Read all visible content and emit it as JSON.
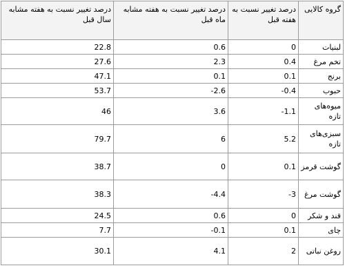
{
  "table": {
    "headers": {
      "year": "درصد تغییر نسبت به هفته مشابه سال قبل",
      "month": "درصد تغییر نسبت به هفته مشابه ماه قبل",
      "week": "درصد تغییر نسبت به هفته قبل",
      "group": "گروه کالایی"
    },
    "rows": [
      {
        "group": "لبنیات",
        "week": "0",
        "month": "0.6",
        "year": "22.8"
      },
      {
        "group": "تخم مرغ",
        "week": "0.4",
        "month": "2.3",
        "year": "27.6"
      },
      {
        "group": "برنج",
        "week": "0.1",
        "month": "0.1",
        "year": "47.1"
      },
      {
        "group": "حبوب",
        "week": "-0.4",
        "month": "-2.6",
        "year": "53.7"
      },
      {
        "group": "میوه‌های تازه",
        "week": "-1.1",
        "month": "3.6",
        "year": "46"
      },
      {
        "group": "سبزی‌های تازه",
        "week": "5.2",
        "month": "6",
        "year": "79.7"
      },
      {
        "group": "گوشت قرمز",
        "week": "0.1",
        "month": "0",
        "year": "38.7"
      },
      {
        "group": "گوشت مرغ",
        "week": "-3",
        "month": "-4.4",
        "year": "38.3"
      },
      {
        "group": "قند و شکر",
        "week": "0",
        "month": "0.6",
        "year": "24.5"
      },
      {
        "group": "چای",
        "week": "0.1",
        "month": "-0.1",
        "year": "7.7"
      },
      {
        "group": "روغن نباتی",
        "week": "2",
        "month": "4.1",
        "year": "30.1"
      }
    ]
  }
}
